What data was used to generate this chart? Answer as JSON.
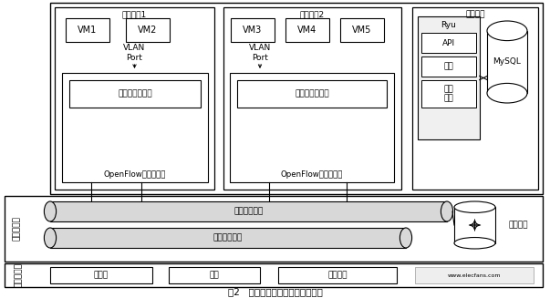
{
  "title": "图2   通信访问控制系统结构示意图",
  "labels": {
    "compute1": "计算节点1",
    "compute2": "计算节点2",
    "control": "控制节点",
    "vm1": "VM1",
    "vm2": "VM2",
    "vm3": "VM3",
    "vm4": "VM4",
    "vm5": "VM5",
    "vlan_port": "VLAN\nPort",
    "comm_ctrl": "通信访问控制层",
    "openflow": "OpenFlow虚拟交换机",
    "ryu": "Ryu",
    "api": "API",
    "auth": "认证",
    "logic": "逻辑\n控制",
    "mysql": "MySQL",
    "vnet1": "虚拟网络链路",
    "vnet2": "虚拟网络链路",
    "vrouter": "虚拟路由",
    "net_virt": "网络虚拟化",
    "infra": "基础设施层",
    "server": "服务器",
    "storage": "存储",
    "net_device": "网络设备",
    "watermark": "www.elecfans.com"
  },
  "layout": {
    "fig_w": 6.03,
    "fig_h": 3.27,
    "dpi": 100
  }
}
